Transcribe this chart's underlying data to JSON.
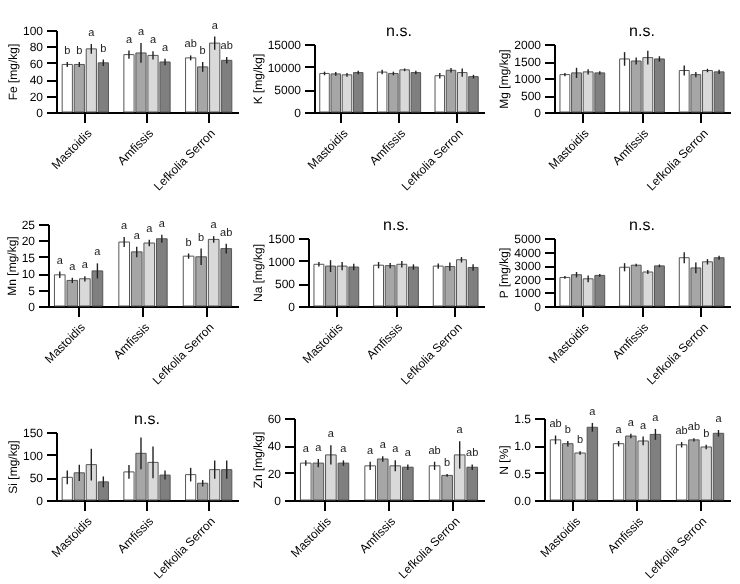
{
  "chart_data": [
    {
      "type": "bar",
      "ylabel": "Fe [mg/kg]",
      "categories": [
        "Mastoidis",
        "Amfissis",
        "Lefkolia Serron"
      ],
      "ylim": [
        0,
        100
      ],
      "yticks": [
        0,
        20,
        40,
        60,
        80,
        100
      ],
      "series": [
        {
          "color": "#ffffff",
          "values": [
            58,
            70,
            66
          ],
          "errors": [
            3,
            5,
            3
          ],
          "value_labels": [
            "b",
            "a",
            "ab"
          ]
        },
        {
          "color": "#a6a6a6",
          "values": [
            58,
            72,
            55
          ],
          "errors": [
            3,
            12,
            6
          ],
          "value_labels": [
            "b",
            "a",
            "b"
          ]
        },
        {
          "color": "#d9d9d9",
          "values": [
            77,
            69,
            84
          ],
          "errors": [
            6,
            5,
            8
          ],
          "value_labels": [
            "a",
            "a",
            "a"
          ]
        },
        {
          "color": "#7f7f7f",
          "values": [
            60,
            61,
            63
          ],
          "errors": [
            4,
            4,
            4
          ],
          "value_labels": [
            "b",
            "a",
            "ab"
          ]
        }
      ]
    },
    {
      "type": "bar",
      "ylabel": "K [mg/kg]",
      "categories": [
        "Mastoidis",
        "Amfissis",
        "Lefkolia Serron"
      ],
      "ylim": [
        0,
        15000
      ],
      "yticks": [
        0,
        5000,
        10000,
        15000
      ],
      "annotations": [
        "n.s."
      ],
      "series": [
        {
          "color": "#ffffff",
          "values": [
            8500,
            8800,
            8000
          ],
          "errors": [
            400,
            500,
            600
          ]
        },
        {
          "color": "#a6a6a6",
          "values": [
            8400,
            8500,
            9200
          ],
          "errors": [
            400,
            400,
            500
          ]
        },
        {
          "color": "#d9d9d9",
          "values": [
            8200,
            9300,
            8700
          ],
          "errors": [
            400,
            300,
            900
          ]
        },
        {
          "color": "#7f7f7f",
          "values": [
            8700,
            8700,
            7800
          ],
          "errors": [
            400,
            400,
            400
          ]
        }
      ]
    },
    {
      "type": "bar",
      "ylabel": "Mg [mg/kg]",
      "categories": [
        "Mastoidis",
        "Amfissis",
        "Lefkolia Serron"
      ],
      "ylim": [
        0,
        2000
      ],
      "yticks": [
        0,
        500,
        1000,
        1500,
        2000
      ],
      "annotations": [
        "n.s."
      ],
      "series": [
        {
          "color": "#ffffff",
          "values": [
            1100,
            1560,
            1220
          ],
          "errors": [
            50,
            200,
            150
          ]
        },
        {
          "color": "#a6a6a6",
          "values": [
            1150,
            1500,
            1100
          ],
          "errors": [
            150,
            100,
            80
          ]
        },
        {
          "color": "#d9d9d9",
          "values": [
            1180,
            1600,
            1220
          ],
          "errors": [
            80,
            200,
            50
          ]
        },
        {
          "color": "#7f7f7f",
          "values": [
            1150,
            1560,
            1180
          ],
          "errors": [
            50,
            80,
            60
          ]
        }
      ]
    },
    {
      "type": "bar",
      "ylabel": "Mn [mg/kg]",
      "categories": [
        "Mastoidis",
        "Amfissis",
        "Lefkolia Serron"
      ],
      "ylim": [
        0,
        25
      ],
      "yticks": [
        0,
        5,
        10,
        15,
        20,
        25
      ],
      "series": [
        {
          "color": "#ffffff",
          "values": [
            9.5,
            19.5,
            15.2
          ],
          "errors": [
            1,
            1.5,
            0.8
          ],
          "value_labels": [
            "a",
            "a",
            "b"
          ]
        },
        {
          "color": "#a6a6a6",
          "values": [
            7.8,
            16.5,
            15
          ],
          "errors": [
            0.8,
            1.6,
            2.5
          ],
          "value_labels": [
            "a",
            "a",
            "b"
          ]
        },
        {
          "color": "#d9d9d9",
          "values": [
            8.3,
            19.2,
            20.3
          ],
          "errors": [
            0.8,
            1,
            1
          ],
          "value_labels": [
            "a",
            "a",
            "a"
          ]
        },
        {
          "color": "#7f7f7f",
          "values": [
            10.7,
            20.5,
            17.5
          ],
          "errors": [
            2.3,
            1.2,
            1.5
          ],
          "value_labels": [
            "a",
            "a",
            "ab"
          ]
        }
      ]
    },
    {
      "type": "bar",
      "ylabel": "Na [mg/kg]",
      "categories": [
        "Mastoidis",
        "Amfissis",
        "Lefkolia Serron"
      ],
      "ylim": [
        0,
        1500
      ],
      "yticks": [
        0,
        500,
        1000,
        1500
      ],
      "annotations": [
        "n.s."
      ],
      "series": [
        {
          "color": "#ffffff",
          "values": [
            920,
            900,
            880
          ],
          "errors": [
            50,
            70,
            60
          ]
        },
        {
          "color": "#a6a6a6",
          "values": [
            880,
            890,
            870
          ],
          "errors": [
            130,
            60,
            90
          ]
        },
        {
          "color": "#d9d9d9",
          "values": [
            880,
            920,
            1020
          ],
          "errors": [
            90,
            70,
            60
          ]
        },
        {
          "color": "#7f7f7f",
          "values": [
            860,
            860,
            850
          ],
          "errors": [
            70,
            60,
            70
          ]
        }
      ]
    },
    {
      "type": "bar",
      "ylabel": "P [mg/kg]",
      "categories": [
        "Mastoidis",
        "Amfissis",
        "Lefkolia Serron"
      ],
      "ylim": [
        0,
        5000
      ],
      "yticks": [
        0,
        1000,
        2000,
        3000,
        4000,
        5000
      ],
      "annotations": [
        "n.s."
      ],
      "series": [
        {
          "color": "#ffffff",
          "values": [
            2100,
            2850,
            3550
          ],
          "errors": [
            100,
            300,
            400
          ]
        },
        {
          "color": "#a6a6a6",
          "values": [
            2300,
            3000,
            2800
          ],
          "errors": [
            200,
            100,
            400
          ]
        },
        {
          "color": "#d9d9d9",
          "values": [
            2000,
            2500,
            3250
          ],
          "errors": [
            250,
            150,
            200
          ]
        },
        {
          "color": "#7f7f7f",
          "values": [
            2250,
            2950,
            3550
          ],
          "errors": [
            100,
            100,
            150
          ]
        }
      ]
    },
    {
      "type": "bar",
      "ylabel": "Si [mg/kg]",
      "categories": [
        "Mastoidis",
        "Amfissis",
        "Lefkolia Serron"
      ],
      "ylim": [
        0,
        150
      ],
      "yticks": [
        0,
        50,
        100,
        150
      ],
      "annotations": [
        "n.s."
      ],
      "series": [
        {
          "color": "#ffffff",
          "values": [
            50,
            62,
            56
          ],
          "errors": [
            15,
            15,
            15
          ]
        },
        {
          "color": "#a6a6a6",
          "values": [
            60,
            103,
            37
          ],
          "errors": [
            18,
            35,
            7
          ]
        },
        {
          "color": "#d9d9d9",
          "values": [
            78,
            83,
            67
          ],
          "errors": [
            35,
            35,
            20
          ]
        },
        {
          "color": "#7f7f7f",
          "values": [
            40,
            55,
            67
          ],
          "errors": [
            12,
            10,
            20
          ]
        }
      ]
    },
    {
      "type": "bar",
      "ylabel": "Zn [mg/kg]",
      "categories": [
        "Mastoidis",
        "Amfissis",
        "Lefkolia Serron"
      ],
      "ylim": [
        0,
        60
      ],
      "yticks": [
        0,
        20,
        40,
        60
      ],
      "series": [
        {
          "color": "#ffffff",
          "values": [
            27,
            25,
            25
          ],
          "errors": [
            2,
            3,
            3
          ],
          "value_labels": [
            "a",
            "a",
            "ab"
          ]
        },
        {
          "color": "#a6a6a6",
          "values": [
            27,
            30,
            18
          ],
          "errors": [
            3,
            2,
            1
          ],
          "value_labels": [
            "a",
            "a",
            "b"
          ]
        },
        {
          "color": "#d9d9d9",
          "values": [
            33,
            25,
            33
          ],
          "errors": [
            7,
            4,
            10
          ],
          "value_labels": [
            "a",
            "a",
            "a"
          ]
        },
        {
          "color": "#7f7f7f",
          "values": [
            27,
            24,
            24
          ],
          "errors": [
            2,
            2,
            2
          ],
          "value_labels": [
            "a",
            "a",
            "ab"
          ]
        }
      ]
    },
    {
      "type": "bar",
      "ylabel": "N [%]",
      "categories": [
        "Mastoidis",
        "Amfissis",
        "Lefkolia Serron"
      ],
      "ylim": [
        0,
        1.5
      ],
      "yticks": [
        {
          "value": 0,
          "label": "0.0"
        },
        0.5,
        {
          "value": 1,
          "label": "1.0"
        },
        1.5
      ],
      "series": [
        {
          "color": "#ffffff",
          "values": [
            1.1,
            1.03,
            1.01
          ],
          "errors": [
            0.08,
            0.05,
            0.05
          ],
          "value_labels": [
            "ab",
            "a",
            "ab"
          ]
        },
        {
          "color": "#a6a6a6",
          "values": [
            1.03,
            1.17,
            1.1
          ],
          "errors": [
            0.05,
            0.04,
            0.03
          ],
          "value_labels": [
            "b",
            "a",
            "ab"
          ]
        },
        {
          "color": "#d9d9d9",
          "values": [
            0.86,
            1.08,
            0.97
          ],
          "errors": [
            0.03,
            0.08,
            0.04
          ],
          "value_labels": [
            "b",
            "a",
            "b"
          ]
        },
        {
          "color": "#7f7f7f",
          "values": [
            1.33,
            1.2,
            1.22
          ],
          "errors": [
            0.08,
            0.1,
            0.06
          ],
          "value_labels": [
            "a",
            "a",
            "a"
          ]
        }
      ]
    }
  ]
}
